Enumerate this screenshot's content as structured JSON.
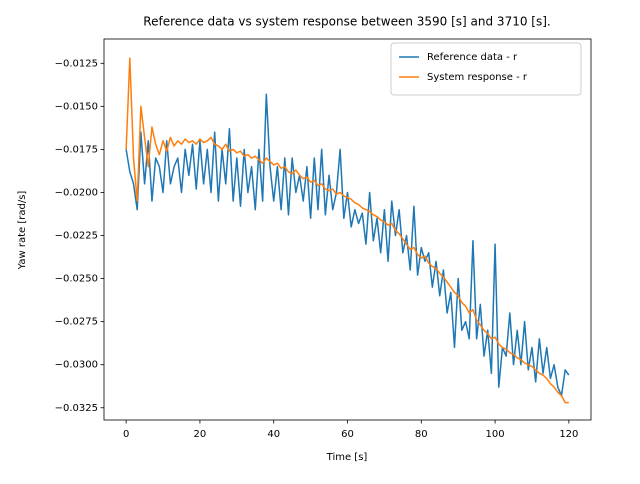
{
  "chart_data": {
    "type": "line",
    "title": "Reference data vs system response between 3590 [s] and 3710 [s].",
    "xlabel": "Time [s]",
    "ylabel": "Yaw rate [rad/s]",
    "x": [
      0,
      1,
      2,
      3,
      4,
      5,
      6,
      7,
      8,
      9,
      10,
      11,
      12,
      13,
      14,
      15,
      16,
      17,
      18,
      19,
      20,
      21,
      22,
      23,
      24,
      25,
      26,
      27,
      28,
      29,
      30,
      31,
      32,
      33,
      34,
      35,
      36,
      37,
      38,
      39,
      40,
      41,
      42,
      43,
      44,
      45,
      46,
      47,
      48,
      49,
      50,
      51,
      52,
      53,
      54,
      55,
      56,
      57,
      58,
      59,
      60,
      61,
      62,
      63,
      64,
      65,
      66,
      67,
      68,
      69,
      70,
      71,
      72,
      73,
      74,
      75,
      76,
      77,
      78,
      79,
      80,
      81,
      82,
      83,
      84,
      85,
      86,
      87,
      88,
      89,
      90,
      91,
      92,
      93,
      94,
      95,
      96,
      97,
      98,
      99,
      100,
      101,
      102,
      103,
      104,
      105,
      106,
      107,
      108,
      109,
      110,
      111,
      112,
      113,
      114,
      115,
      116,
      117,
      118,
      119,
      120
    ],
    "series": [
      {
        "name": "Reference data - r",
        "color": "#1f77b4",
        "values": [
          -0.0175,
          -0.0188,
          -0.0195,
          -0.021,
          -0.0165,
          -0.0195,
          -0.017,
          -0.0205,
          -0.018,
          -0.0185,
          -0.02,
          -0.017,
          -0.0195,
          -0.0185,
          -0.018,
          -0.02,
          -0.0175,
          -0.019,
          -0.0172,
          -0.0198,
          -0.017,
          -0.0195,
          -0.0175,
          -0.02,
          -0.0165,
          -0.0205,
          -0.0175,
          -0.0195,
          -0.0163,
          -0.0205,
          -0.018,
          -0.0208,
          -0.0175,
          -0.02,
          -0.0185,
          -0.021,
          -0.0175,
          -0.0205,
          -0.0143,
          -0.0185,
          -0.0205,
          -0.0185,
          -0.021,
          -0.018,
          -0.0213,
          -0.018,
          -0.02,
          -0.019,
          -0.0205,
          -0.0185,
          -0.0215,
          -0.018,
          -0.021,
          -0.0175,
          -0.0213,
          -0.019,
          -0.021,
          -0.02,
          -0.0175,
          -0.0215,
          -0.02,
          -0.022,
          -0.021,
          -0.0218,
          -0.0212,
          -0.023,
          -0.02,
          -0.0228,
          -0.0215,
          -0.0235,
          -0.021,
          -0.024,
          -0.0205,
          -0.0225,
          -0.021,
          -0.0235,
          -0.0225,
          -0.0245,
          -0.0208,
          -0.0248,
          -0.0232,
          -0.024,
          -0.0235,
          -0.0255,
          -0.024,
          -0.026,
          -0.0245,
          -0.027,
          -0.0258,
          -0.029,
          -0.025,
          -0.028,
          -0.0275,
          -0.0285,
          -0.0228,
          -0.0285,
          -0.0265,
          -0.0295,
          -0.028,
          -0.0305,
          -0.023,
          -0.0313,
          -0.029,
          -0.0295,
          -0.027,
          -0.03,
          -0.028,
          -0.03,
          -0.0275,
          -0.0303,
          -0.029,
          -0.031,
          -0.0285,
          -0.0305,
          -0.029,
          -0.0308,
          -0.03,
          -0.0313,
          -0.0318,
          -0.0303,
          -0.0306
        ]
      },
      {
        "name": "System response - r",
        "color": "#ff7f0e",
        "values": [
          -0.0175,
          -0.0122,
          -0.018,
          -0.0205,
          -0.015,
          -0.0168,
          -0.0185,
          -0.0162,
          -0.0172,
          -0.0178,
          -0.017,
          -0.0176,
          -0.0168,
          -0.0173,
          -0.017,
          -0.0172,
          -0.0169,
          -0.0171,
          -0.017,
          -0.0172,
          -0.0169,
          -0.0171,
          -0.017,
          -0.0168,
          -0.0172,
          -0.0173,
          -0.0175,
          -0.0172,
          -0.0176,
          -0.0175,
          -0.0177,
          -0.0176,
          -0.0179,
          -0.0178,
          -0.018,
          -0.0179,
          -0.0181,
          -0.0183,
          -0.018,
          -0.0182,
          -0.0184,
          -0.0183,
          -0.0186,
          -0.0185,
          -0.0188,
          -0.0189,
          -0.0187,
          -0.019,
          -0.0192,
          -0.0191,
          -0.0194,
          -0.0193,
          -0.0196,
          -0.0195,
          -0.0198,
          -0.0199,
          -0.0198,
          -0.0201,
          -0.02,
          -0.0202,
          -0.0203,
          -0.0204,
          -0.0206,
          -0.0207,
          -0.0209,
          -0.021,
          -0.0211,
          -0.0213,
          -0.0214,
          -0.0216,
          -0.0217,
          -0.0219,
          -0.0218,
          -0.0222,
          -0.0224,
          -0.0227,
          -0.023,
          -0.0233,
          -0.0232,
          -0.0236,
          -0.0238,
          -0.0237,
          -0.0241,
          -0.0243,
          -0.0244,
          -0.0247,
          -0.0249,
          -0.0252,
          -0.0255,
          -0.0258,
          -0.026,
          -0.0264,
          -0.0266,
          -0.027,
          -0.0268,
          -0.0274,
          -0.0277,
          -0.028,
          -0.0282,
          -0.0285,
          -0.0284,
          -0.0288,
          -0.029,
          -0.0291,
          -0.0293,
          -0.0294,
          -0.0296,
          -0.0297,
          -0.0299,
          -0.03,
          -0.0301,
          -0.0303,
          -0.0305,
          -0.0306,
          -0.0308,
          -0.0311,
          -0.0313,
          -0.0316,
          -0.0318,
          -0.0322,
          -0.0322
        ]
      }
    ],
    "xlim": [
      -6,
      126
    ],
    "xticks": [
      0,
      20,
      40,
      60,
      80,
      100,
      120
    ],
    "ylim": [
      -0.03321,
      -0.01109
    ],
    "yticks": [
      {
        "value": -0.0325,
        "label": "−0.0325"
      },
      {
        "value": -0.03,
        "label": "−0.0300"
      },
      {
        "value": -0.0275,
        "label": "−0.0275"
      },
      {
        "value": -0.025,
        "label": "−0.0250"
      },
      {
        "value": -0.0225,
        "label": "−0.0225"
      },
      {
        "value": -0.02,
        "label": "−0.0200"
      },
      {
        "value": -0.0175,
        "label": "−0.0175"
      },
      {
        "value": -0.015,
        "label": "−0.0150"
      },
      {
        "value": -0.0125,
        "label": "−0.0125"
      }
    ],
    "legend": "upper right"
  }
}
